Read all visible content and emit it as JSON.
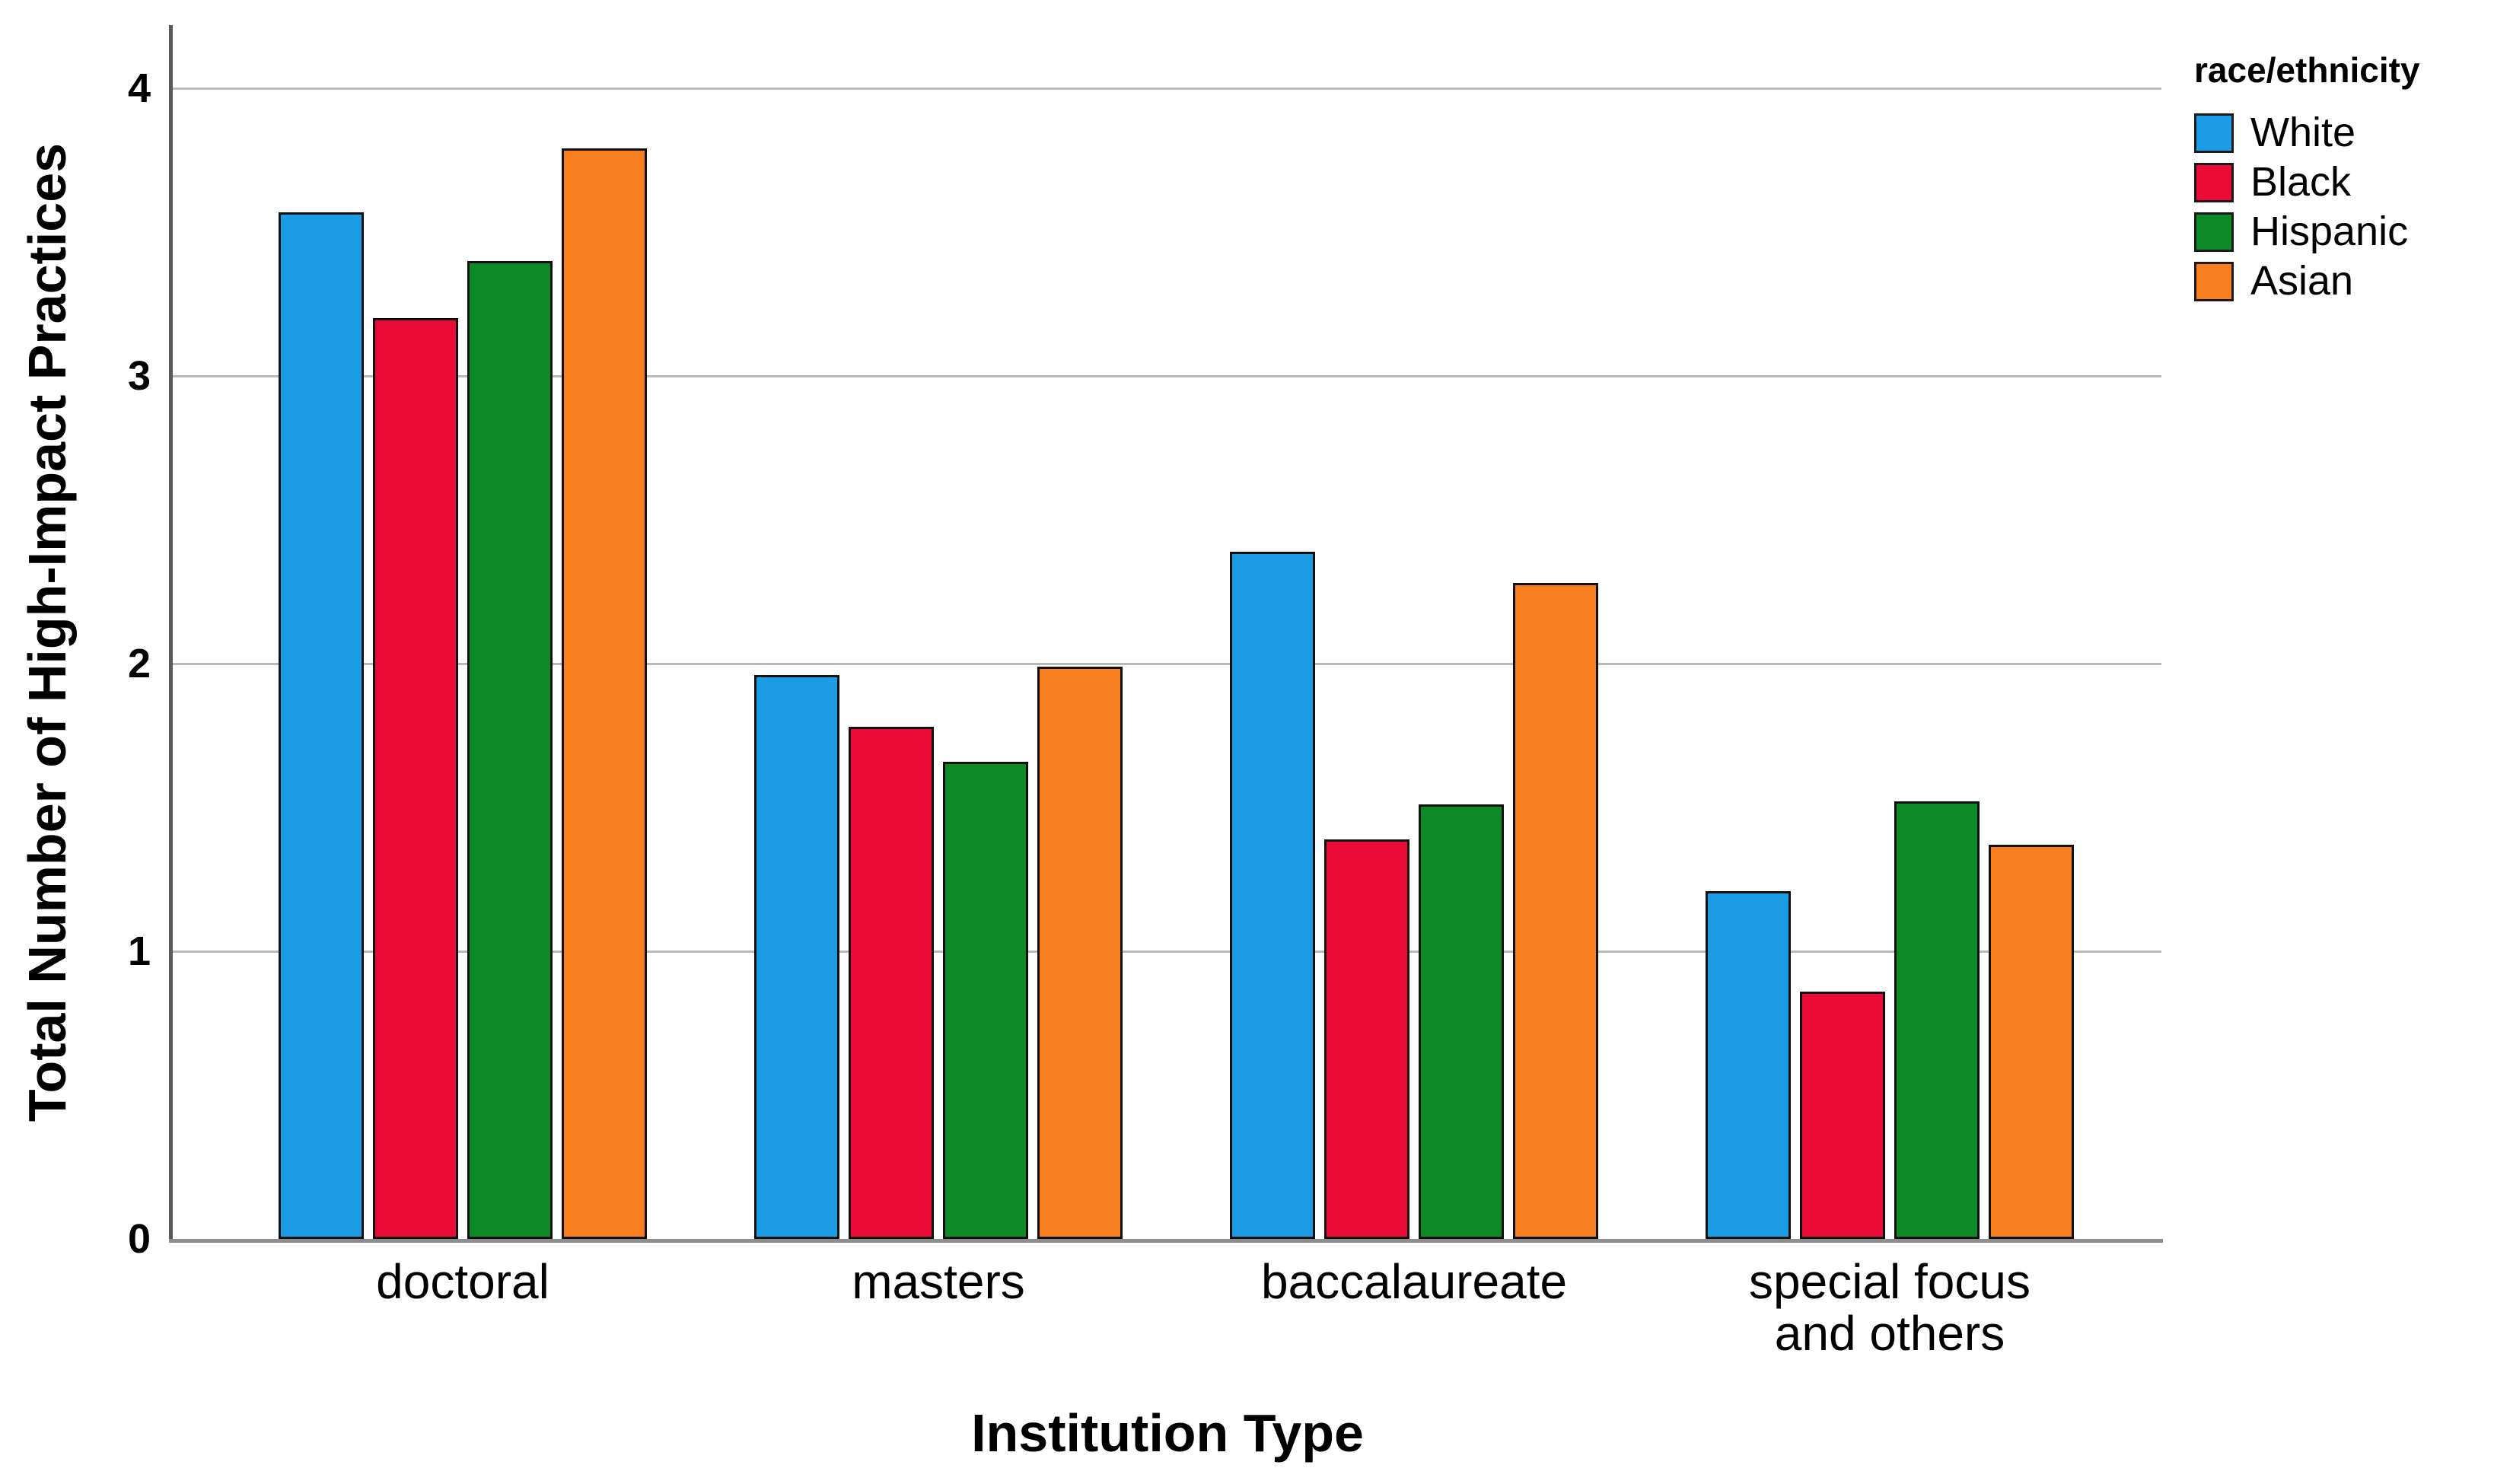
{
  "chart_data": {
    "type": "bar",
    "title": "",
    "xlabel": "Institution Type",
    "ylabel": "Total Number of High-Impact Practices",
    "legend_title": "race/ethnicity",
    "legend_position": "top-right",
    "grid": "horizontal",
    "background_color": "#ffffff",
    "gridline_color": "#bababa",
    "axis_line_color": "#59595b",
    "bar_outline_color": "#101010",
    "categories": [
      "doctoral",
      "masters",
      "baccalaureate",
      "special focus\nand others"
    ],
    "yticks": [
      0,
      1,
      2,
      3,
      4
    ],
    "ylim": [
      0,
      4.21
    ],
    "series": [
      {
        "name": "White",
        "color": "#1B9CE4",
        "values": [
          3.57,
          1.96,
          2.39,
          1.21
        ]
      },
      {
        "name": "Black",
        "color": "#EA0B36",
        "values": [
          3.2,
          1.78,
          1.39,
          0.86
        ]
      },
      {
        "name": "Hispanic",
        "color": "#0E8928",
        "values": [
          3.4,
          1.66,
          1.51,
          1.52
        ]
      },
      {
        "name": "Asian",
        "color": "#F97E1E",
        "values": [
          3.79,
          1.99,
          2.28,
          1.37
        ]
      }
    ]
  }
}
